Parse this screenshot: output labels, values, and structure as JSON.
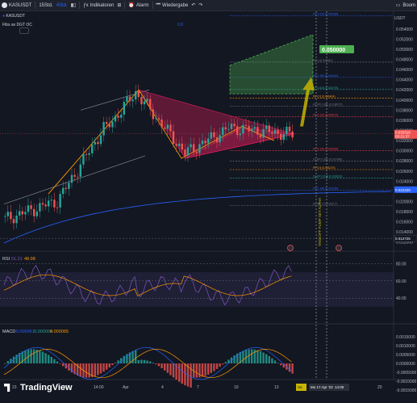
{
  "toolbar": {
    "symbol": "KASUSDT",
    "interval_a": "15Std.",
    "interval_b": "4Std.",
    "indicators": "Indikatoren",
    "alarm": "Alarm",
    "replay": "Wiedergabe",
    "right_label": "Boom"
  },
  "chart_title_row": {
    "symbol": "KASUSDT",
    "indicator_label": "Fibs av DGT OC",
    "indicator_value": "0.0"
  },
  "price_axis": {
    "currency": "USDT",
    "labels": [
      "0.056000",
      "0.054000",
      "0.052000",
      "0.050000",
      "0.048000",
      "0.046000",
      "0.044000",
      "0.042000",
      "0.040000",
      "0.038000",
      "0.036000",
      "0.034000",
      "0.032000",
      "0.030000",
      "0.028000",
      "0.026000",
      "0.024000",
      "0.022000",
      "0.020000",
      "0.018000",
      "0.016000",
      "0.014000",
      "0.012000"
    ],
    "current_price": "0.033319",
    "current_countdown": "03:21:37",
    "ma_price": "0.022328",
    "low_price": "0.012725"
  },
  "fib_levels": [
    {
      "label": "PP 1.618 (0.056198)",
      "color": "#2962ff"
    },
    {
      "label": "R2 1 (0.047461)",
      "color": "#787b86"
    },
    {
      "label": "PP 0.786 (0.044444)",
      "color": "#2962ff"
    },
    {
      "label": "PP 0.618 (0.042075)",
      "color": "#26a69a"
    },
    {
      "label": "PP 0.5 (0.040404)",
      "color": "#ff9800"
    },
    {
      "label": "R1 PP 0.382 (0.038737)",
      "color": "#787b86"
    },
    {
      "label": "PP 0.236 (0.036673)",
      "color": "#f23645"
    },
    {
      "label": "PP 0.236 (0.030008)",
      "color": "#f23645"
    },
    {
      "label": "S1 PP 0.382 (0.027946)",
      "color": "#787b86"
    },
    {
      "label": "PP 0.5 (0.026279)",
      "color": "#ff9800"
    },
    {
      "label": "S1 PP 0.618 (0.024613)",
      "color": "#26a69a"
    },
    {
      "label": "PP 0.786 (0.022239)",
      "color": "#2962ff"
    },
    {
      "label": "S2 PP 1 (0.019217)",
      "color": "#787b86"
    }
  ],
  "target": {
    "label": "0.050000"
  },
  "annotation_vertical": "TAKEOFF PUMP SET ALPHA",
  "rsi": {
    "label": "RSI",
    "v1": "51.21",
    "v2": "48.98",
    "levels": [
      "80.00",
      "60.00",
      "40.00"
    ]
  },
  "macd": {
    "label": "MACD",
    "v1": "-0.000061",
    "v2": "0.000004",
    "v3": "0.000065",
    "levels": [
      "0.0015000",
      "0.0010000",
      "0.0005000",
      "0.0000000",
      "-0.0005000",
      "-0.0010000",
      "-0.0015000"
    ]
  },
  "time_axis": {
    "labels": [
      "23",
      "27",
      "14:00",
      "Apr",
      "4",
      "7",
      "10",
      "13",
      "17",
      "20"
    ],
    "highlight_a": "Sa",
    "highlight_b": "Mo 17 Apr '23",
    "highlight_c": "14:00"
  },
  "branding": {
    "name": "TradingView"
  },
  "colors": {
    "bg": "#131722",
    "up": "#26a69a",
    "down": "#ef5350",
    "target_green": "#4caf50",
    "pattern_red": "#b71c50",
    "orange": "#ff9800",
    "ma_blue": "#2962ff"
  }
}
